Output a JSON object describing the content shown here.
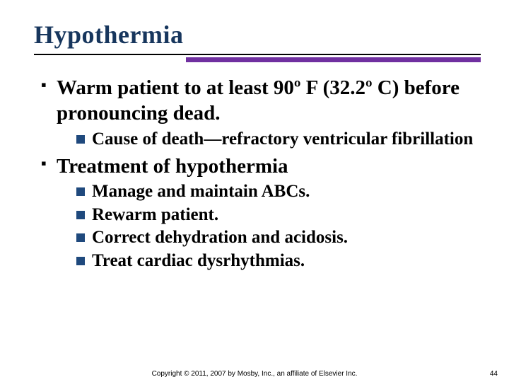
{
  "colors": {
    "title": "#17365d",
    "rule_thick": "#7030a0",
    "rule_thin": "#000000",
    "bullet_sq_small": "#1f497d",
    "bullet_sq_large": "#000000",
    "text": "#000000",
    "background": "#ffffff"
  },
  "fontsizes": {
    "title": 36,
    "l1": 29,
    "l2": 25,
    "footer": 10
  },
  "title": "Hypothermia",
  "bullets": [
    {
      "text": "Warm patient to at least 90º F (32.2º C) before pronouncing dead.",
      "sub": [
        "Cause of death—refractory ventricular fibrillation"
      ]
    },
    {
      "text": "Treatment of hypothermia",
      "sub": [
        "Manage and maintain ABCs.",
        "Rewarm patient.",
        "Correct dehydration and acidosis.",
        "Treat cardiac dysrhythmias."
      ]
    }
  ],
  "footer": "Copyright © 2011, 2007 by Mosby, Inc., an affiliate of Elsevier Inc.",
  "pagenum": "44"
}
